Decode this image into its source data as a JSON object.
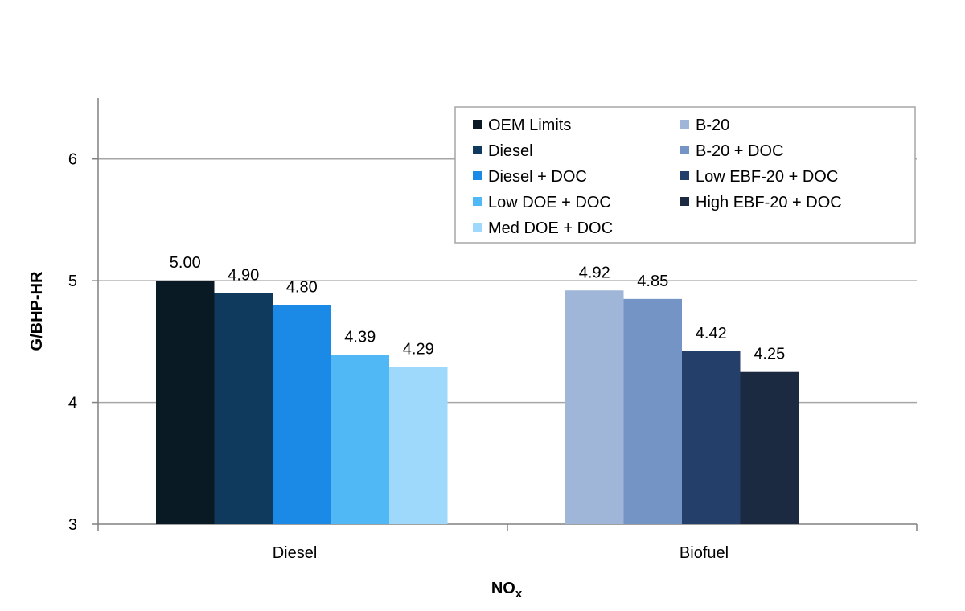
{
  "chart_data": {
    "type": "bar",
    "xlabel": "NO",
    "xlabel_subscript": "x",
    "ylabel": "G/BHP-HR",
    "ylim": [
      3,
      6.5
    ],
    "yticks": [
      3,
      4,
      5,
      6
    ],
    "grid": true,
    "legend_position": "top-right",
    "groups": [
      {
        "category": "Diesel",
        "bars": [
          {
            "series": "OEM Limits",
            "value": 5.0,
            "label": "5.00",
            "color": "#0a1a24"
          },
          {
            "series": "Diesel",
            "value": 4.9,
            "label": "4.90",
            "color": "#0f3a5e"
          },
          {
            "series": "Diesel + DOC",
            "value": 4.8,
            "label": "4.80",
            "color": "#1a8ae6"
          },
          {
            "series": "Low DOE + DOC",
            "value": 4.39,
            "label": "4.39",
            "color": "#4fb8f5"
          },
          {
            "series": "Med DOE + DOC",
            "value": 4.29,
            "label": "4.29",
            "color": "#9ed9fb"
          }
        ]
      },
      {
        "category": "Biofuel",
        "bars": [
          {
            "series": "B-20",
            "value": 4.92,
            "label": "4.92",
            "color": "#a0b6d8"
          },
          {
            "series": "B-20 + DOC",
            "value": 4.85,
            "label": "4.85",
            "color": "#7594c6"
          },
          {
            "series": "Low EBF-20 + DOC",
            "value": 4.42,
            "label": "4.42",
            "color": "#243f6a"
          },
          {
            "series": "High EBF-20 + DOC",
            "value": 4.25,
            "label": "4.25",
            "color": "#1b2a40"
          }
        ]
      }
    ],
    "legend": {
      "columns": [
        [
          {
            "name": "OEM Limits",
            "color": "#0a1a24"
          },
          {
            "name": "Diesel",
            "color": "#0f3a5e"
          },
          {
            "name": "Diesel + DOC",
            "color": "#1a8ae6"
          },
          {
            "name": "Low DOE + DOC",
            "color": "#4fb8f5"
          },
          {
            "name": "Med DOE + DOC",
            "color": "#9ed9fb"
          }
        ],
        [
          {
            "name": "B-20",
            "color": "#a0b6d8"
          },
          {
            "name": "B-20 + DOC",
            "color": "#7594c6"
          },
          {
            "name": "Low EBF-20 + DOC",
            "color": "#243f6a"
          },
          {
            "name": "High EBF-20 + DOC",
            "color": "#1b2a40"
          }
        ]
      ]
    },
    "colors": {
      "grid": "#a6a6a6",
      "axis": "#808080",
      "legend_border": "#a6a6a6"
    }
  }
}
